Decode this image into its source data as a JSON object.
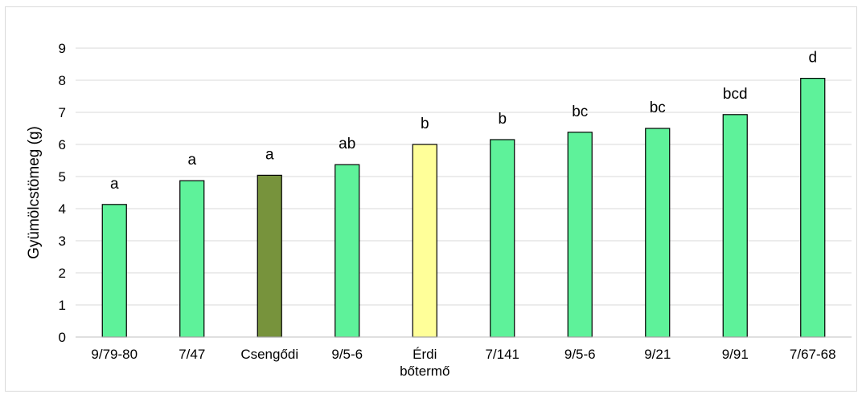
{
  "chart_data": {
    "type": "bar",
    "ylabel": "Gyümölcstömeg (g)",
    "ylim": [
      0,
      9
    ],
    "yticks": [
      0,
      1,
      2,
      3,
      4,
      5,
      6,
      7,
      8,
      9
    ],
    "grid": true,
    "categories": [
      "9/79-80",
      "7/47",
      "Csengődi",
      "9/5-6",
      "Érdi bőtermő",
      "7/141",
      "9/5-6",
      "9/21",
      "9/91",
      "7/67-68"
    ],
    "category_lines": [
      [
        "9/79-80"
      ],
      [
        "7/47"
      ],
      [
        "Csengődi"
      ],
      [
        "9/5-6"
      ],
      [
        "Érdi",
        "bőtermő"
      ],
      [
        "7/141"
      ],
      [
        "9/5-6"
      ],
      [
        "9/21"
      ],
      [
        "9/91"
      ],
      [
        "7/67-68"
      ]
    ],
    "values": [
      4.13,
      4.87,
      5.04,
      5.37,
      6.0,
      6.15,
      6.38,
      6.5,
      6.93,
      8.06
    ],
    "letters": [
      "a",
      "a",
      "a",
      "ab",
      "b",
      "b",
      "bc",
      "bc",
      "bcd",
      "d"
    ],
    "colors": [
      "#5ef29a",
      "#5ef29a",
      "#77933c",
      "#5ef29a",
      "#ffff99",
      "#5ef29a",
      "#5ef29a",
      "#5ef29a",
      "#5ef29a",
      "#5ef29a"
    ]
  }
}
